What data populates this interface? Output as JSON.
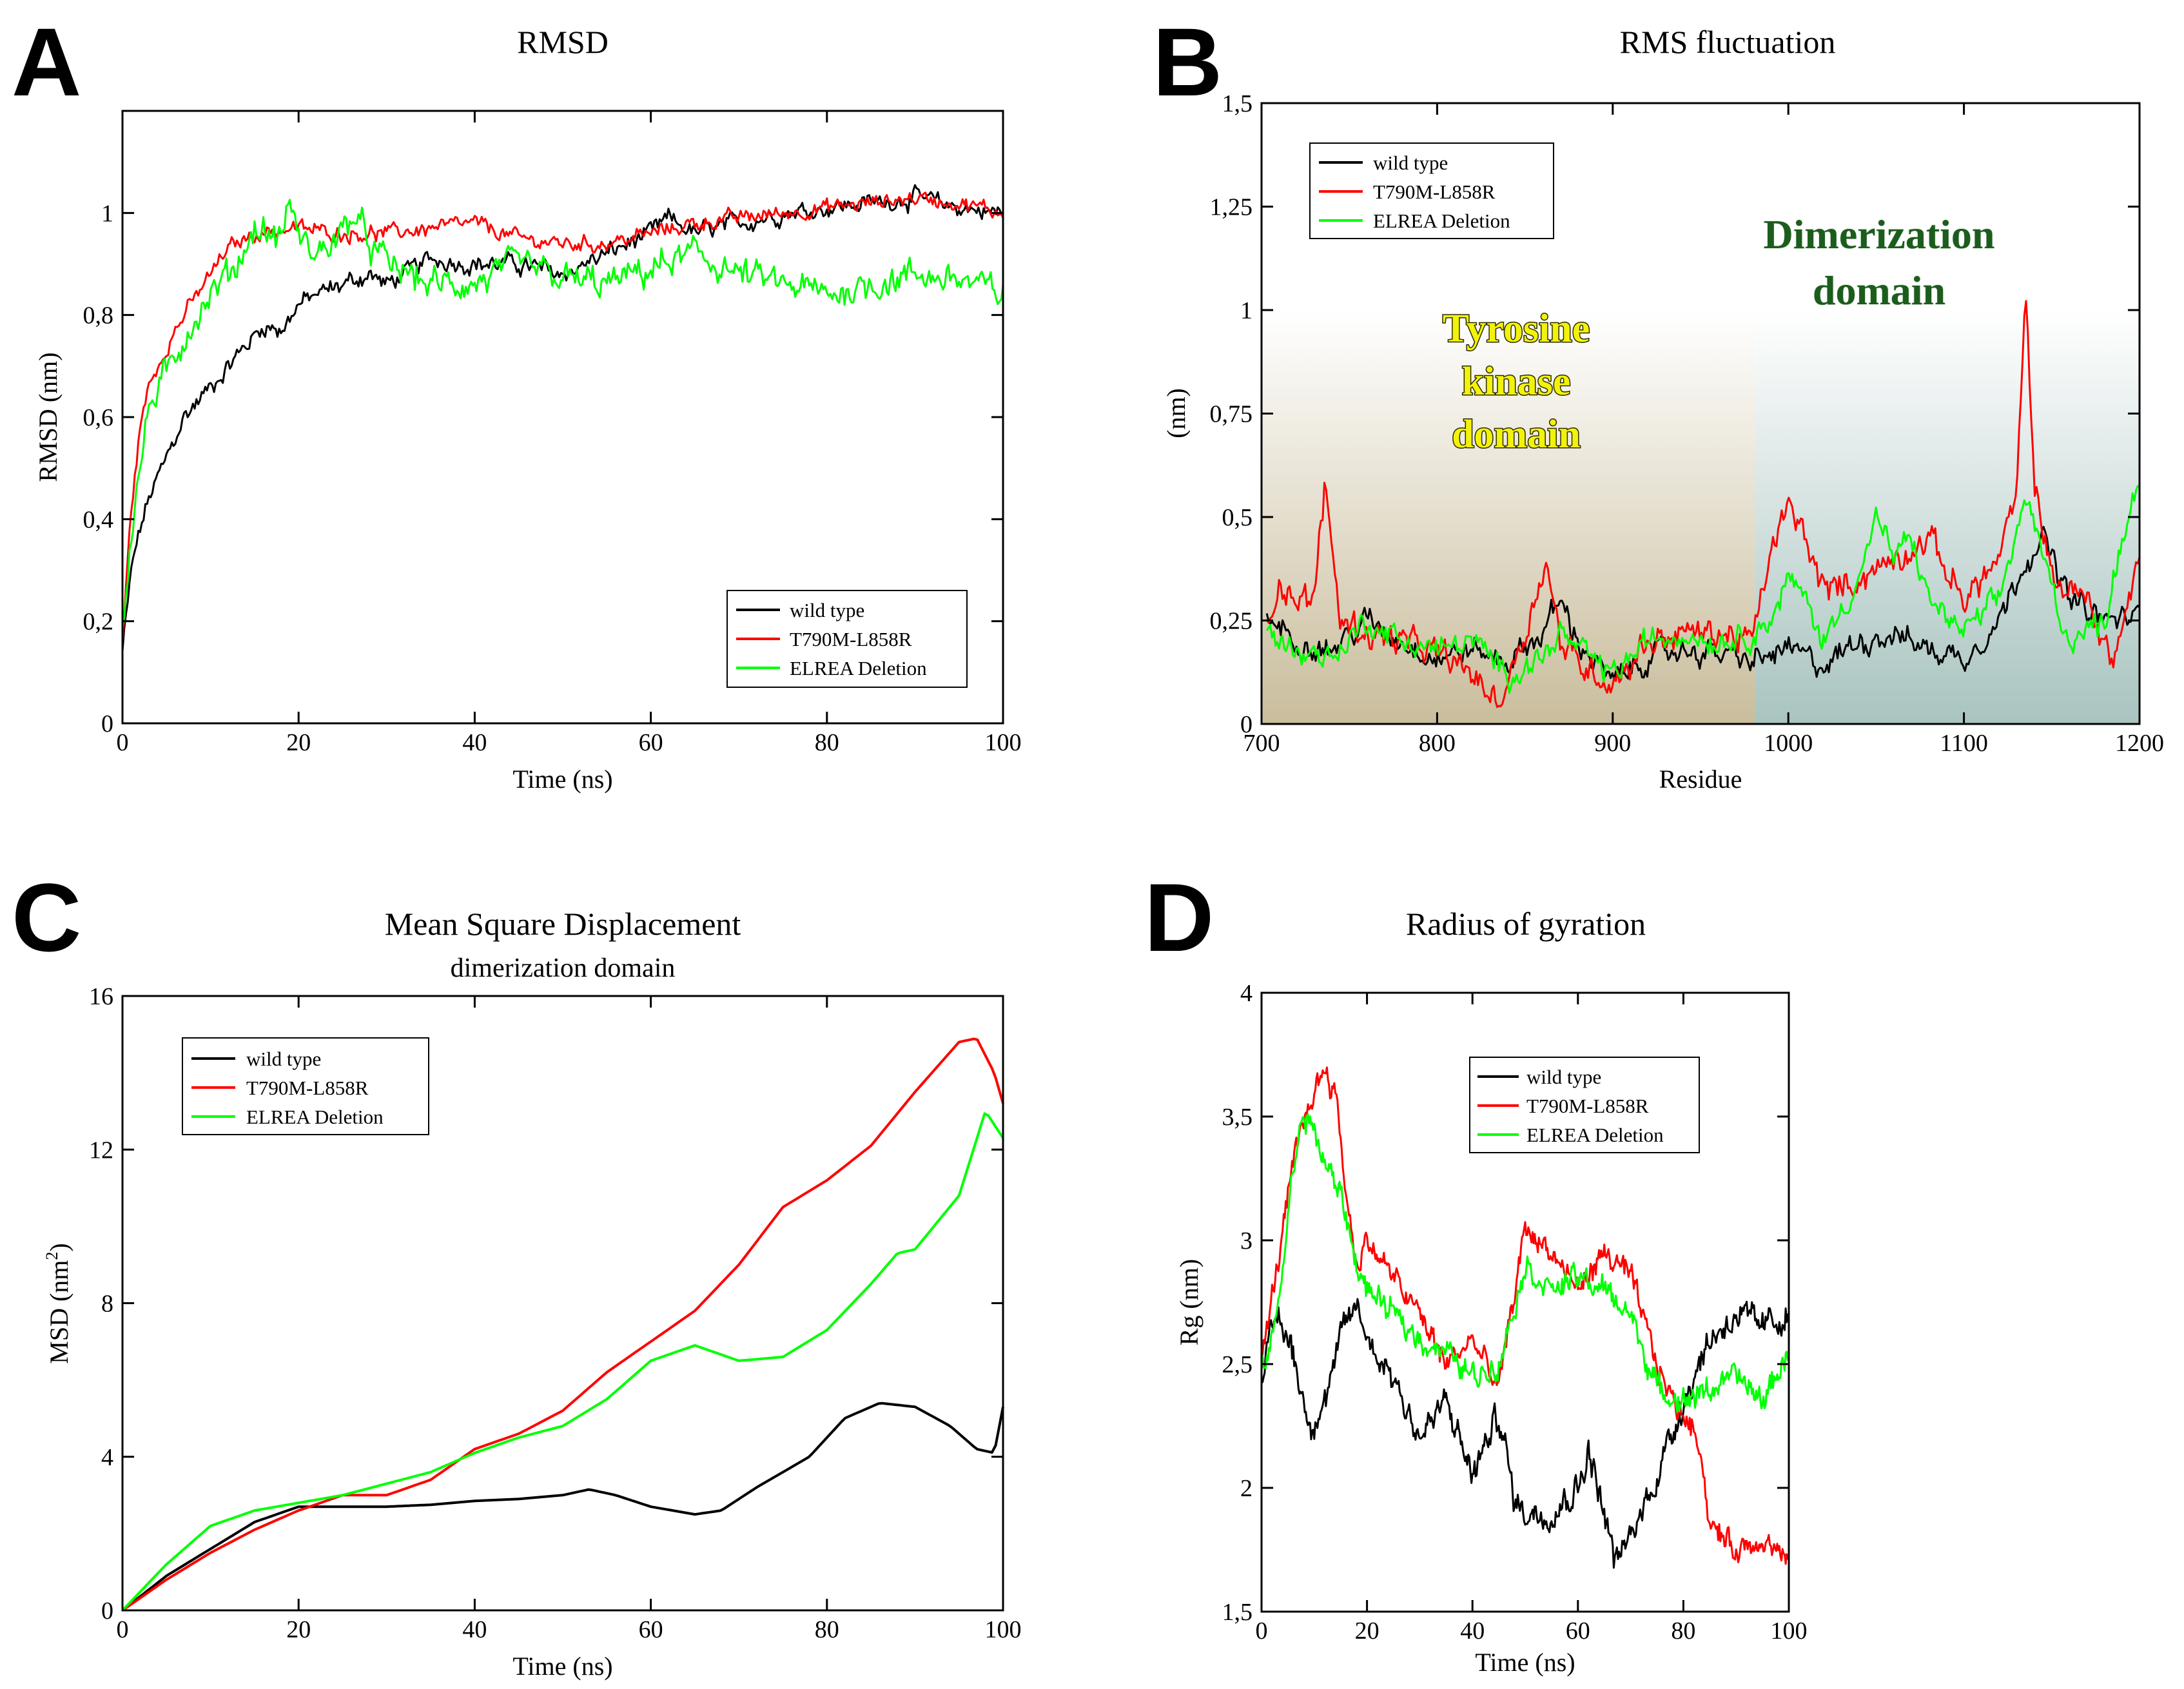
{
  "chart_data": [
    {
      "panel": "A",
      "type": "line",
      "title": "RMSD",
      "xlabel": "Time (ns)",
      "ylabel": "RMSD (nm)",
      "xlim": [
        0,
        100
      ],
      "ylim": [
        0,
        1.2
      ],
      "xticks": [
        0,
        20,
        40,
        60,
        80,
        100
      ],
      "xtick_labels": [
        "0",
        "20",
        "40",
        "60",
        "80",
        "100"
      ],
      "yticks": [
        0,
        0.2,
        0.4,
        0.6,
        0.8,
        1
      ],
      "ytick_labels": [
        "0",
        "0,2",
        "0,4",
        "0,6",
        "0,8",
        "1"
      ],
      "legend_position": "bottom-right",
      "series": [
        {
          "name": "wild type",
          "color": "#000000",
          "noise": 0.018,
          "x": [
            0,
            1,
            2,
            3,
            5,
            7,
            10,
            13,
            16,
            18,
            20,
            22,
            25,
            28,
            30,
            35,
            40,
            45,
            50,
            55,
            60,
            62,
            65,
            70,
            75,
            80,
            85,
            90,
            95,
            100
          ],
          "y": [
            0.14,
            0.3,
            0.38,
            0.44,
            0.52,
            0.6,
            0.66,
            0.72,
            0.78,
            0.77,
            0.82,
            0.84,
            0.86,
            0.88,
            0.86,
            0.91,
            0.9,
            0.9,
            0.88,
            0.92,
            0.96,
            0.99,
            0.96,
            0.98,
            1.0,
            1.01,
            1.02,
            1.03,
            1.01,
            1.0
          ]
        },
        {
          "name": "T790M-L858R",
          "color": "#ff0000",
          "noise": 0.015,
          "x": [
            0,
            1,
            2,
            3,
            5,
            7,
            10,
            12,
            15,
            20,
            25,
            30,
            35,
            40,
            45,
            50,
            55,
            60,
            65,
            70,
            75,
            80,
            85,
            90,
            95,
            100
          ],
          "y": [
            0.16,
            0.42,
            0.58,
            0.66,
            0.74,
            0.8,
            0.88,
            0.93,
            0.96,
            0.97,
            0.96,
            0.96,
            0.97,
            0.98,
            0.95,
            0.94,
            0.94,
            0.96,
            0.98,
            0.99,
            1.0,
            1.01,
            1.02,
            1.03,
            1.02,
            1.0
          ]
        },
        {
          "name": "ELREA Deletion",
          "color": "#00ff00",
          "noise": 0.03,
          "x": [
            0,
            1,
            2,
            3,
            5,
            7,
            10,
            13,
            15,
            18,
            19,
            20,
            22,
            25,
            26,
            28,
            30,
            35,
            40,
            45,
            50,
            55,
            60,
            65,
            70,
            75,
            80,
            85,
            90,
            95,
            100
          ],
          "y": [
            0.18,
            0.38,
            0.5,
            0.62,
            0.68,
            0.76,
            0.84,
            0.9,
            0.97,
            0.95,
            1.03,
            0.95,
            0.92,
            0.96,
            1.0,
            0.94,
            0.9,
            0.86,
            0.86,
            0.9,
            0.87,
            0.86,
            0.89,
            0.92,
            0.88,
            0.86,
            0.84,
            0.86,
            0.88,
            0.87,
            0.84
          ]
        }
      ]
    },
    {
      "panel": "B",
      "type": "line",
      "title": "RMS fluctuation",
      "xlabel": "Residue",
      "ylabel": "(nm)",
      "xlim": [
        700,
        1200
      ],
      "ylim": [
        0,
        1.5
      ],
      "xticks": [
        700,
        800,
        900,
        1000,
        1100,
        1200
      ],
      "xtick_labels": [
        "700",
        "800",
        "900",
        "1000",
        "1100",
        "1200"
      ],
      "yticks": [
        0,
        0.25,
        0.5,
        0.75,
        1,
        1.25,
        1.5
      ],
      "ytick_labels": [
        "0",
        "0,25",
        "0,5",
        "0,75",
        "1",
        "1,25",
        "1,5"
      ],
      "legend_position": "top-left",
      "regions": [
        {
          "label_lines": [
            "Tyrosine",
            "kinase",
            "domain"
          ],
          "from": 700,
          "to": 981
        },
        {
          "label_lines": [
            "Dimerization",
            "domain"
          ],
          "from": 981,
          "to": 1200
        }
      ],
      "series": [
        {
          "name": "wild type",
          "color": "#000000",
          "noise": 0.03,
          "x": [
            703,
            720,
            740,
            760,
            780,
            800,
            820,
            840,
            860,
            870,
            880,
            900,
            920,
            940,
            960,
            980,
            1000,
            1020,
            1040,
            1060,
            1080,
            1100,
            1120,
            1135,
            1145,
            1160,
            1180,
            1200
          ],
          "y": [
            0.26,
            0.2,
            0.18,
            0.25,
            0.2,
            0.16,
            0.18,
            0.15,
            0.22,
            0.3,
            0.2,
            0.1,
            0.16,
            0.18,
            0.17,
            0.15,
            0.18,
            0.14,
            0.2,
            0.22,
            0.18,
            0.16,
            0.25,
            0.4,
            0.45,
            0.3,
            0.25,
            0.26
          ]
        },
        {
          "name": "T790M-L858R",
          "color": "#ff0000",
          "noise": 0.035,
          "x": [
            703,
            710,
            720,
            730,
            736,
            745,
            760,
            780,
            800,
            820,
            835,
            850,
            862,
            870,
            880,
            900,
            920,
            940,
            960,
            980,
            990,
            1000,
            1010,
            1020,
            1040,
            1060,
            1080,
            1100,
            1120,
            1130,
            1135,
            1140,
            1150,
            1170,
            1185,
            1200
          ],
          "y": [
            0.25,
            0.35,
            0.3,
            0.3,
            0.58,
            0.25,
            0.22,
            0.2,
            0.17,
            0.12,
            0.05,
            0.22,
            0.4,
            0.2,
            0.15,
            0.1,
            0.2,
            0.22,
            0.22,
            0.2,
            0.42,
            0.52,
            0.45,
            0.32,
            0.35,
            0.4,
            0.45,
            0.3,
            0.4,
            0.55,
            1.02,
            0.6,
            0.35,
            0.3,
            0.15,
            0.4
          ]
        },
        {
          "name": "ELREA Deletion",
          "color": "#00ff00",
          "noise": 0.03,
          "x": [
            703,
            720,
            740,
            760,
            780,
            800,
            820,
            840,
            860,
            870,
            880,
            900,
            920,
            940,
            960,
            980,
            990,
            1000,
            1010,
            1020,
            1040,
            1050,
            1060,
            1070,
            1080,
            1100,
            1120,
            1135,
            1145,
            1160,
            1180,
            1190,
            1200
          ],
          "y": [
            0.22,
            0.18,
            0.16,
            0.25,
            0.2,
            0.18,
            0.2,
            0.12,
            0.16,
            0.22,
            0.18,
            0.12,
            0.2,
            0.22,
            0.2,
            0.22,
            0.25,
            0.35,
            0.3,
            0.2,
            0.35,
            0.5,
            0.4,
            0.45,
            0.3,
            0.22,
            0.3,
            0.55,
            0.4,
            0.2,
            0.25,
            0.45,
            0.6
          ]
        }
      ]
    },
    {
      "panel": "C",
      "type": "line",
      "title": "Mean Square Displacement",
      "subtitle": "dimerization domain",
      "xlabel": "Time (ns)",
      "ylabel": "MSD (nm",
      "ylabel_sup": "2",
      "ylabel_end": ")",
      "xlim": [
        0,
        100
      ],
      "ylim": [
        0,
        16
      ],
      "xticks": [
        0,
        20,
        40,
        60,
        80,
        100
      ],
      "xtick_labels": [
        "0",
        "20",
        "40",
        "60",
        "80",
        "100"
      ],
      "yticks": [
        0,
        4,
        8,
        12,
        16
      ],
      "ytick_labels": [
        "0",
        "4",
        "8",
        "12",
        "16"
      ],
      "legend_position": "top-left",
      "series": [
        {
          "name": "wild type",
          "color": "#000000",
          "noise": 0,
          "x": [
            0,
            5,
            10,
            15,
            20,
            25,
            30,
            35,
            40,
            45,
            50,
            53,
            56,
            60,
            65,
            68,
            72,
            78,
            82,
            86,
            90,
            94,
            97,
            99,
            100
          ],
          "y": [
            0,
            0.9,
            1.6,
            2.3,
            2.7,
            2.7,
            2.7,
            2.75,
            2.85,
            2.9,
            3.0,
            3.15,
            3.0,
            2.7,
            2.5,
            2.6,
            3.2,
            4.0,
            5.0,
            5.4,
            5.3,
            4.8,
            4.2,
            4.1,
            5.3
          ]
        },
        {
          "name": "T790M-L858R",
          "color": "#ff0000",
          "noise": 0,
          "x": [
            0,
            5,
            10,
            15,
            20,
            25,
            30,
            35,
            40,
            45,
            50,
            55,
            60,
            65,
            70,
            75,
            80,
            85,
            90,
            95,
            97,
            99,
            100
          ],
          "y": [
            0,
            0.8,
            1.5,
            2.1,
            2.6,
            3.0,
            3.0,
            3.4,
            4.2,
            4.6,
            5.2,
            6.2,
            7.0,
            7.8,
            9.0,
            10.5,
            11.2,
            12.1,
            13.5,
            14.8,
            14.9,
            14.0,
            13.2
          ]
        },
        {
          "name": "ELREA Deletion",
          "color": "#00ff00",
          "noise": 0,
          "x": [
            0,
            5,
            10,
            15,
            20,
            25,
            30,
            35,
            40,
            45,
            50,
            55,
            60,
            65,
            70,
            75,
            80,
            85,
            88,
            90,
            95,
            98,
            100
          ],
          "y": [
            0,
            1.2,
            2.2,
            2.6,
            2.8,
            3.0,
            3.3,
            3.6,
            4.1,
            4.5,
            4.8,
            5.5,
            6.5,
            6.9,
            6.5,
            6.6,
            7.3,
            8.5,
            9.3,
            9.4,
            10.8,
            13.0,
            12.3
          ]
        }
      ]
    },
    {
      "panel": "D",
      "type": "line",
      "title": "Radius of gyration",
      "xlabel": "Time (ns)",
      "ylabel": "Rg (nm)",
      "xlim": [
        0,
        100
      ],
      "ylim": [
        1.5,
        4
      ],
      "xticks": [
        0,
        20,
        40,
        60,
        80,
        100
      ],
      "xtick_labels": [
        "0",
        "20",
        "40",
        "60",
        "80",
        "100"
      ],
      "yticks": [
        1.5,
        2,
        2.5,
        3,
        3.5,
        4
      ],
      "ytick_labels": [
        "1,5",
        "2",
        "2,5",
        "3",
        "3,5",
        "4"
      ],
      "legend_position": "top-right",
      "series": [
        {
          "name": "wild type",
          "color": "#000000",
          "noise": 0.06,
          "x": [
            0,
            3,
            6,
            9,
            12,
            15,
            18,
            20,
            25,
            30,
            35,
            40,
            45,
            48,
            50,
            55,
            60,
            62,
            65,
            67,
            70,
            75,
            80,
            85,
            90,
            95,
            100
          ],
          "y": [
            2.45,
            2.7,
            2.55,
            2.25,
            2.35,
            2.6,
            2.75,
            2.6,
            2.45,
            2.2,
            2.35,
            2.05,
            2.3,
            1.95,
            1.9,
            1.9,
            2.0,
            2.15,
            1.9,
            1.7,
            1.8,
            2.05,
            2.35,
            2.6,
            2.7,
            2.65,
            2.7
          ]
        },
        {
          "name": "T790M-L858R",
          "color": "#ff0000",
          "noise": 0.05,
          "x": [
            0,
            3,
            6,
            9,
            12,
            14,
            16,
            18,
            20,
            25,
            30,
            35,
            40,
            45,
            50,
            55,
            60,
            65,
            70,
            75,
            78,
            80,
            83,
            85,
            90,
            95,
            100
          ],
          "y": [
            2.5,
            2.9,
            3.3,
            3.55,
            3.7,
            3.6,
            3.2,
            2.9,
            3.0,
            2.85,
            2.7,
            2.5,
            2.6,
            2.4,
            3.05,
            2.95,
            2.8,
            2.95,
            2.85,
            2.5,
            2.35,
            2.3,
            2.2,
            1.85,
            1.75,
            1.8,
            1.7
          ]
        },
        {
          "name": "ELREA Deletion",
          "color": "#00ff00",
          "noise": 0.05,
          "x": [
            0,
            3,
            6,
            8,
            10,
            12,
            15,
            18,
            20,
            25,
            30,
            35,
            40,
            45,
            50,
            55,
            60,
            65,
            70,
            75,
            80,
            85,
            90,
            95,
            100
          ],
          "y": [
            2.45,
            2.7,
            3.3,
            3.5,
            3.45,
            3.3,
            3.2,
            2.9,
            2.8,
            2.7,
            2.6,
            2.55,
            2.45,
            2.5,
            2.9,
            2.8,
            2.85,
            2.8,
            2.7,
            2.4,
            2.35,
            2.4,
            2.45,
            2.35,
            2.55
          ]
        }
      ]
    }
  ]
}
